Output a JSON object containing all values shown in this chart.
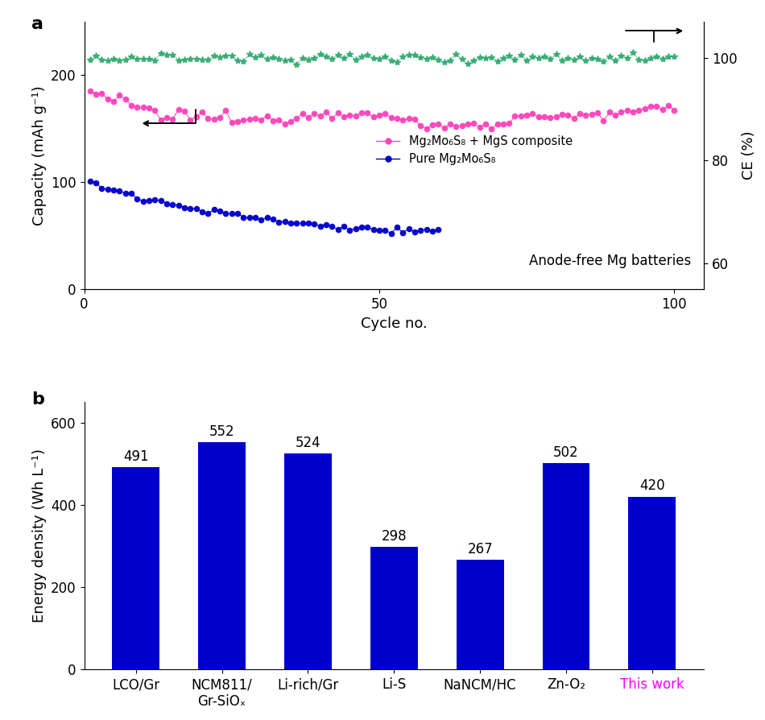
{
  "panel_a": {
    "title_label": "a",
    "xlabel": "Cycle no.",
    "ylabel_left": "Capacity (mAh g⁻¹)",
    "ylabel_right": "CE (%)",
    "xlim": [
      0,
      105
    ],
    "ylim_left": [
      0,
      250
    ],
    "ylim_right": [
      55,
      107
    ],
    "xticks": [
      0,
      50,
      100
    ],
    "yticks_left": [
      0,
      100,
      200
    ],
    "yticks_right": [
      60,
      80,
      100
    ],
    "annotation": "Anode-free Mg batteries",
    "pink_color": "#FF44BB",
    "blue_color": "#0000CC",
    "green_color": "#2EAA6E",
    "pink_label": "Mg₂Mo₆S₈ + MgS composite",
    "blue_label": "Pure Mg₂Mo₆S₈",
    "n_cycles_pink": 100,
    "n_cycles_blue": 60,
    "n_cycles_ce": 100
  },
  "panel_b": {
    "title_label": "b",
    "ylabel": "Energy density (Wh L⁻¹)",
    "categories": [
      "LCO/Gr",
      "NCM811/\nGr-SiOₓ",
      "Li-rich/Gr",
      "Li-S",
      "NaNCM/HC",
      "Zn-O₂",
      "This work"
    ],
    "values": [
      491,
      552,
      524,
      298,
      267,
      502,
      420
    ],
    "bar_color": "#0000CC",
    "last_xtick_color": "#FF00FF",
    "ylim": [
      0,
      650
    ],
    "yticks": [
      0,
      200,
      400,
      600
    ]
  }
}
